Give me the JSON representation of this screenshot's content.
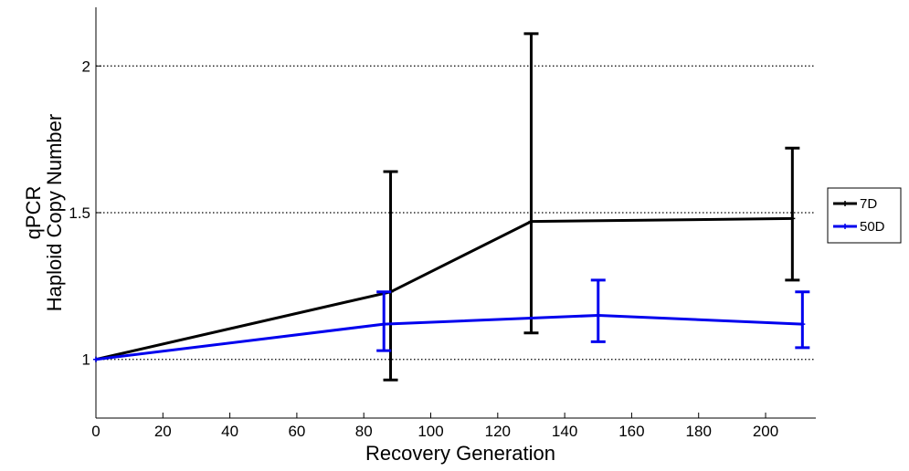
{
  "chart_data": {
    "type": "line",
    "title": "",
    "xlabel": "Recovery Generation",
    "ylabel_lines": [
      "qPCR",
      "Haploid Copy Number"
    ],
    "xlim": [
      0,
      215
    ],
    "ylim": [
      0.8,
      2.2
    ],
    "xticks": [
      0,
      20,
      40,
      60,
      80,
      100,
      120,
      140,
      160,
      180,
      200
    ],
    "xtick_labels": [
      "0",
      "20",
      "40",
      "60",
      "80",
      "100",
      "120",
      "140",
      "160",
      "180",
      "200"
    ],
    "yticks": [
      1,
      1.5,
      2
    ],
    "ytick_labels": [
      "1",
      "1.5",
      "2"
    ],
    "y_gridlines": [
      1,
      1.5,
      2
    ],
    "grid_style": "dotted horizontal at labeled y ticks",
    "legend_position": "right-outside",
    "series": [
      {
        "name": "7D",
        "color": "#000000",
        "points": [
          {
            "x": 0,
            "y": 1.0,
            "err_low": null,
            "err_high": null
          },
          {
            "x": 88,
            "y": 1.23,
            "err_low": 0.93,
            "err_high": 1.64
          },
          {
            "x": 130,
            "y": 1.47,
            "err_low": 1.09,
            "err_high": 2.11
          },
          {
            "x": 208,
            "y": 1.48,
            "err_low": 1.27,
            "err_high": 1.72
          }
        ]
      },
      {
        "name": "50D",
        "color": "#0000ee",
        "points": [
          {
            "x": 0,
            "y": 1.0,
            "err_low": null,
            "err_high": null
          },
          {
            "x": 86,
            "y": 1.12,
            "err_low": 1.03,
            "err_high": 1.23
          },
          {
            "x": 150,
            "y": 1.15,
            "err_low": 1.06,
            "err_high": 1.27
          },
          {
            "x": 211,
            "y": 1.12,
            "err_low": 1.04,
            "err_high": 1.23
          }
        ]
      }
    ]
  }
}
